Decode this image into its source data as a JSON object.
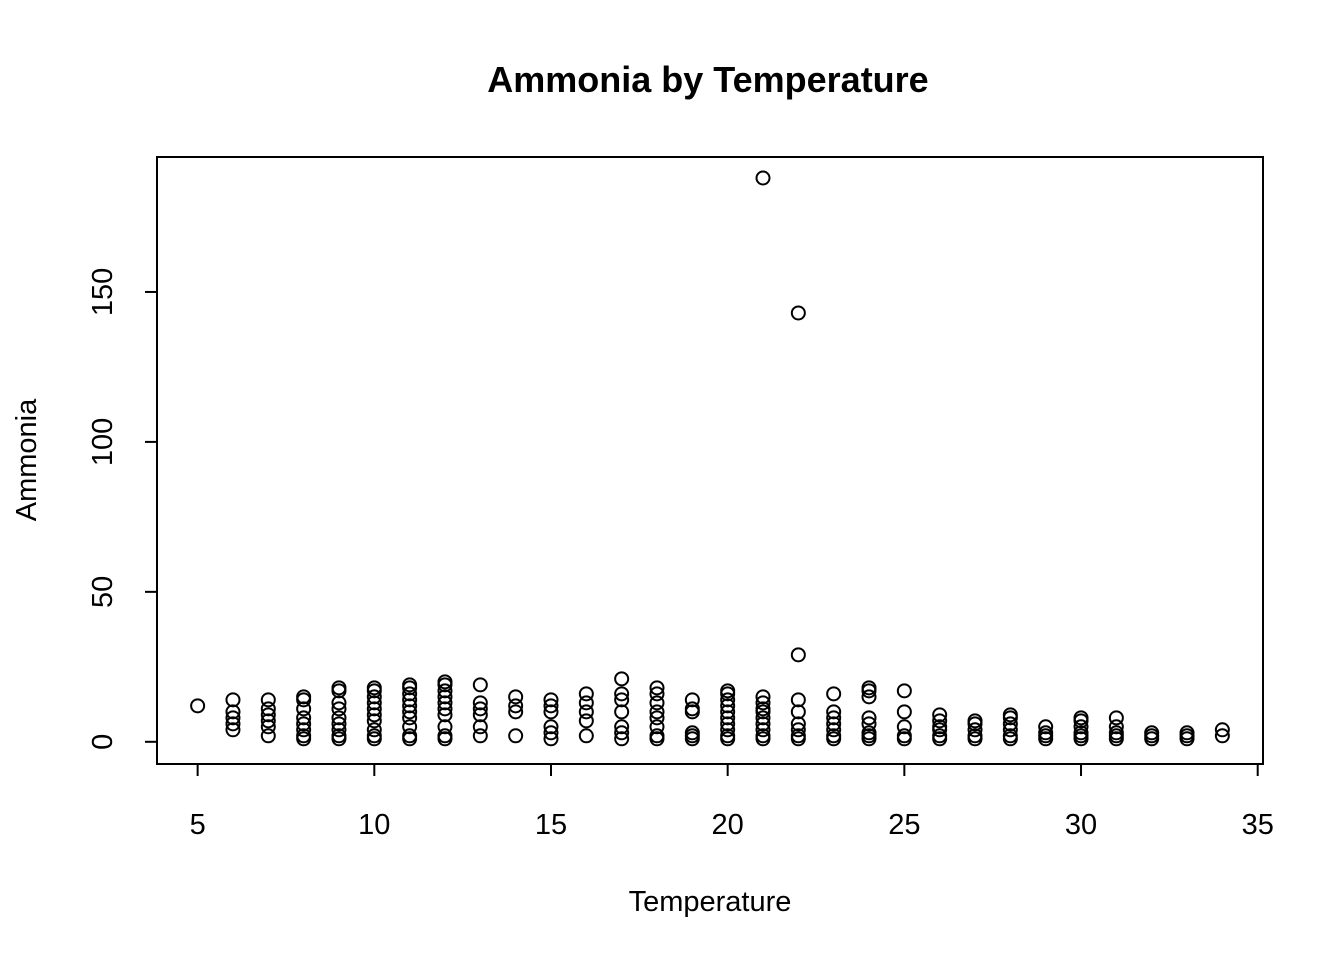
{
  "chart_data": {
    "type": "scatter",
    "title": "Ammonia by Temperature",
    "xlabel": "Temperature",
    "ylabel": "Ammonia",
    "xlim": [
      3.85,
      35.15
    ],
    "ylim": [
      -7.4,
      195
    ],
    "x_ticks": [
      5,
      10,
      15,
      20,
      25,
      30,
      35
    ],
    "y_ticks": [
      0,
      50,
      100,
      150
    ],
    "grid": false,
    "legend": "none",
    "marker": "open-circle",
    "points": [
      [
        5,
        12
      ],
      [
        6,
        14
      ],
      [
        6,
        10
      ],
      [
        6,
        8
      ],
      [
        6,
        6
      ],
      [
        6,
        4
      ],
      [
        7,
        14
      ],
      [
        7,
        11
      ],
      [
        7,
        9
      ],
      [
        7,
        7
      ],
      [
        7,
        5
      ],
      [
        7,
        2
      ],
      [
        8,
        15
      ],
      [
        8,
        14
      ],
      [
        8,
        11
      ],
      [
        8,
        8
      ],
      [
        8,
        6
      ],
      [
        8,
        4
      ],
      [
        8,
        2
      ],
      [
        8,
        1
      ],
      [
        9,
        18
      ],
      [
        9,
        17
      ],
      [
        9,
        13
      ],
      [
        9,
        11
      ],
      [
        9,
        8
      ],
      [
        9,
        6
      ],
      [
        9,
        4
      ],
      [
        9,
        2
      ],
      [
        9,
        1
      ],
      [
        10,
        18
      ],
      [
        10,
        17
      ],
      [
        10,
        15
      ],
      [
        10,
        13
      ],
      [
        10,
        11
      ],
      [
        10,
        9
      ],
      [
        10,
        7
      ],
      [
        10,
        4
      ],
      [
        10,
        2
      ],
      [
        10,
        1
      ],
      [
        11,
        19
      ],
      [
        11,
        18
      ],
      [
        11,
        16
      ],
      [
        11,
        14
      ],
      [
        11,
        12
      ],
      [
        11,
        10
      ],
      [
        11,
        8
      ],
      [
        11,
        5
      ],
      [
        11,
        2
      ],
      [
        11,
        1
      ],
      [
        12,
        20
      ],
      [
        12,
        19
      ],
      [
        12,
        17
      ],
      [
        12,
        15
      ],
      [
        12,
        13
      ],
      [
        12,
        11
      ],
      [
        12,
        9
      ],
      [
        12,
        5
      ],
      [
        12,
        2
      ],
      [
        12,
        1
      ],
      [
        13,
        19
      ],
      [
        13,
        13
      ],
      [
        13,
        11
      ],
      [
        13,
        9
      ],
      [
        13,
        5
      ],
      [
        13,
        2
      ],
      [
        14,
        15
      ],
      [
        14,
        12
      ],
      [
        14,
        10
      ],
      [
        14,
        2
      ],
      [
        15,
        14
      ],
      [
        15,
        12
      ],
      [
        15,
        10
      ],
      [
        15,
        5
      ],
      [
        15,
        3
      ],
      [
        15,
        1
      ],
      [
        16,
        16
      ],
      [
        16,
        13
      ],
      [
        16,
        10
      ],
      [
        16,
        7
      ],
      [
        16,
        2
      ],
      [
        17,
        21
      ],
      [
        17,
        16
      ],
      [
        17,
        14
      ],
      [
        17,
        10
      ],
      [
        17,
        5
      ],
      [
        17,
        3
      ],
      [
        17,
        1
      ],
      [
        18,
        18
      ],
      [
        18,
        16
      ],
      [
        18,
        13
      ],
      [
        18,
        10
      ],
      [
        18,
        8
      ],
      [
        18,
        5
      ],
      [
        18,
        2
      ],
      [
        18,
        1
      ],
      [
        19,
        14
      ],
      [
        19,
        11
      ],
      [
        19,
        10
      ],
      [
        19,
        3
      ],
      [
        19,
        2
      ],
      [
        19,
        1
      ],
      [
        20,
        17
      ],
      [
        20,
        16
      ],
      [
        20,
        14
      ],
      [
        20,
        12
      ],
      [
        20,
        10
      ],
      [
        20,
        8
      ],
      [
        20,
        6
      ],
      [
        20,
        4
      ],
      [
        20,
        2
      ],
      [
        20,
        1
      ],
      [
        21,
        188
      ],
      [
        21,
        15
      ],
      [
        21,
        13
      ],
      [
        21,
        11
      ],
      [
        21,
        10
      ],
      [
        21,
        8
      ],
      [
        21,
        6
      ],
      [
        21,
        4
      ],
      [
        21,
        2
      ],
      [
        21,
        1
      ],
      [
        22,
        143
      ],
      [
        22,
        29
      ],
      [
        22,
        14
      ],
      [
        22,
        10
      ],
      [
        22,
        6
      ],
      [
        22,
        4
      ],
      [
        22,
        2
      ],
      [
        22,
        1
      ],
      [
        23,
        16
      ],
      [
        23,
        10
      ],
      [
        23,
        8
      ],
      [
        23,
        6
      ],
      [
        23,
        4
      ],
      [
        23,
        2
      ],
      [
        23,
        1
      ],
      [
        24,
        18
      ],
      [
        24,
        17
      ],
      [
        24,
        15
      ],
      [
        24,
        8
      ],
      [
        24,
        6
      ],
      [
        24,
        3
      ],
      [
        24,
        2
      ],
      [
        24,
        1
      ],
      [
        25,
        17
      ],
      [
        25,
        10
      ],
      [
        25,
        5
      ],
      [
        25,
        2
      ],
      [
        25,
        1
      ],
      [
        26,
        9
      ],
      [
        26,
        7
      ],
      [
        26,
        5
      ],
      [
        26,
        4
      ],
      [
        26,
        2
      ],
      [
        26,
        1
      ],
      [
        27,
        7
      ],
      [
        27,
        6
      ],
      [
        27,
        4
      ],
      [
        27,
        2
      ],
      [
        27,
        1
      ],
      [
        28,
        9
      ],
      [
        28,
        8
      ],
      [
        28,
        6
      ],
      [
        28,
        4
      ],
      [
        28,
        2
      ],
      [
        28,
        1
      ],
      [
        29,
        5
      ],
      [
        29,
        3
      ],
      [
        29,
        2
      ],
      [
        29,
        1
      ],
      [
        30,
        8
      ],
      [
        30,
        7
      ],
      [
        30,
        5
      ],
      [
        30,
        3
      ],
      [
        30,
        2
      ],
      [
        30,
        1
      ],
      [
        31,
        8
      ],
      [
        31,
        5
      ],
      [
        31,
        3
      ],
      [
        31,
        2
      ],
      [
        31,
        1
      ],
      [
        32,
        3
      ],
      [
        32,
        2
      ],
      [
        32,
        1
      ],
      [
        33,
        3
      ],
      [
        33,
        2
      ],
      [
        33,
        1
      ],
      [
        34,
        4
      ],
      [
        34,
        2
      ]
    ]
  }
}
